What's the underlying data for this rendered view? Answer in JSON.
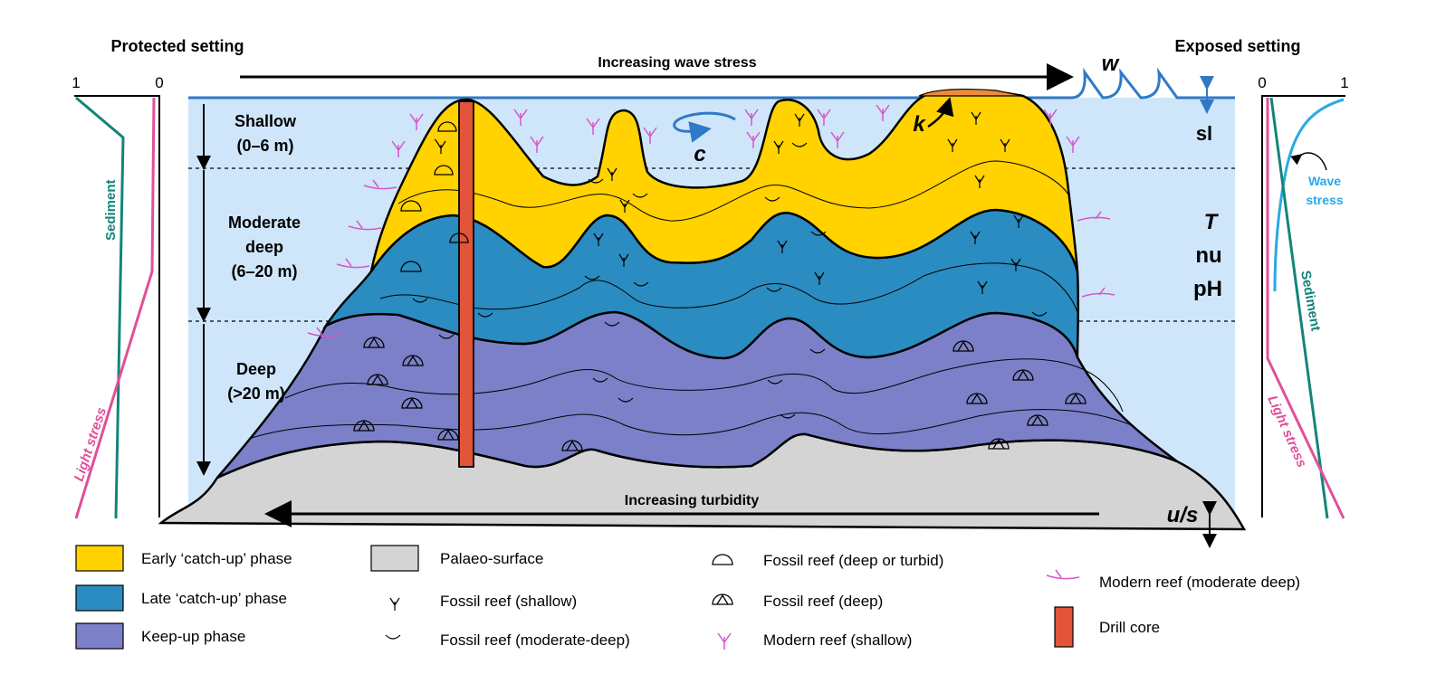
{
  "titles": {
    "protected": "Protected setting",
    "exposed": "Exposed setting"
  },
  "arrows": {
    "wave": "Increasing wave stress",
    "turbidity": "Increasing turbidity"
  },
  "depth_zones": {
    "shallow": "Shallow",
    "shallow_range": "(0–6 m)",
    "moderate": "Moderate",
    "moderate2": "deep",
    "moderate_range": "(6–20 m)",
    "deep": "Deep",
    "deep_range": "(>20 m)"
  },
  "symbols": {
    "w": "w",
    "k": "k",
    "c": "c",
    "sl": "sl",
    "T": "T",
    "nu": "nu",
    "pH": "pH",
    "us": "u/s"
  },
  "left_panel": {
    "axis_left": "1",
    "axis_right": "0",
    "sediment": "Sediment",
    "light": "Light stress"
  },
  "right_panel": {
    "axis_left": "0",
    "axis_right": "1",
    "wave1": "Wave",
    "wave2": "stress",
    "sediment": "Sediment",
    "light": "Light stress"
  },
  "legend": {
    "early": "Early ‘catch-up’ phase",
    "late": "Late ‘catch-up’ phase",
    "keepup": "Keep-up phase",
    "palaeo": "Palaeo-surface",
    "fossil_shallow": "Fossil reef (shallow)",
    "fossil_moddeep": "Fossil reef (moderate-deep)",
    "fossil_deep_turbid": "Fossil reef (deep or turbid)",
    "fossil_deep": "Fossil reef (deep)",
    "modern_shallow": "Modern reef (shallow)",
    "modern_moddeep": "Modern reef (moderate deep)",
    "drill": "Drill core"
  },
  "colors": {
    "water": "#cfe6fa",
    "early": "#ffd200",
    "late": "#2a8cc0",
    "keepup": "#7b80c8",
    "palaeo": "#d4d4d4",
    "drill": "#e2553a",
    "sediment": "#14847a",
    "light": "#e0509a",
    "wave_line": "#2aa8e8",
    "modern": "#d656c9",
    "sea": "#2f79c7"
  }
}
